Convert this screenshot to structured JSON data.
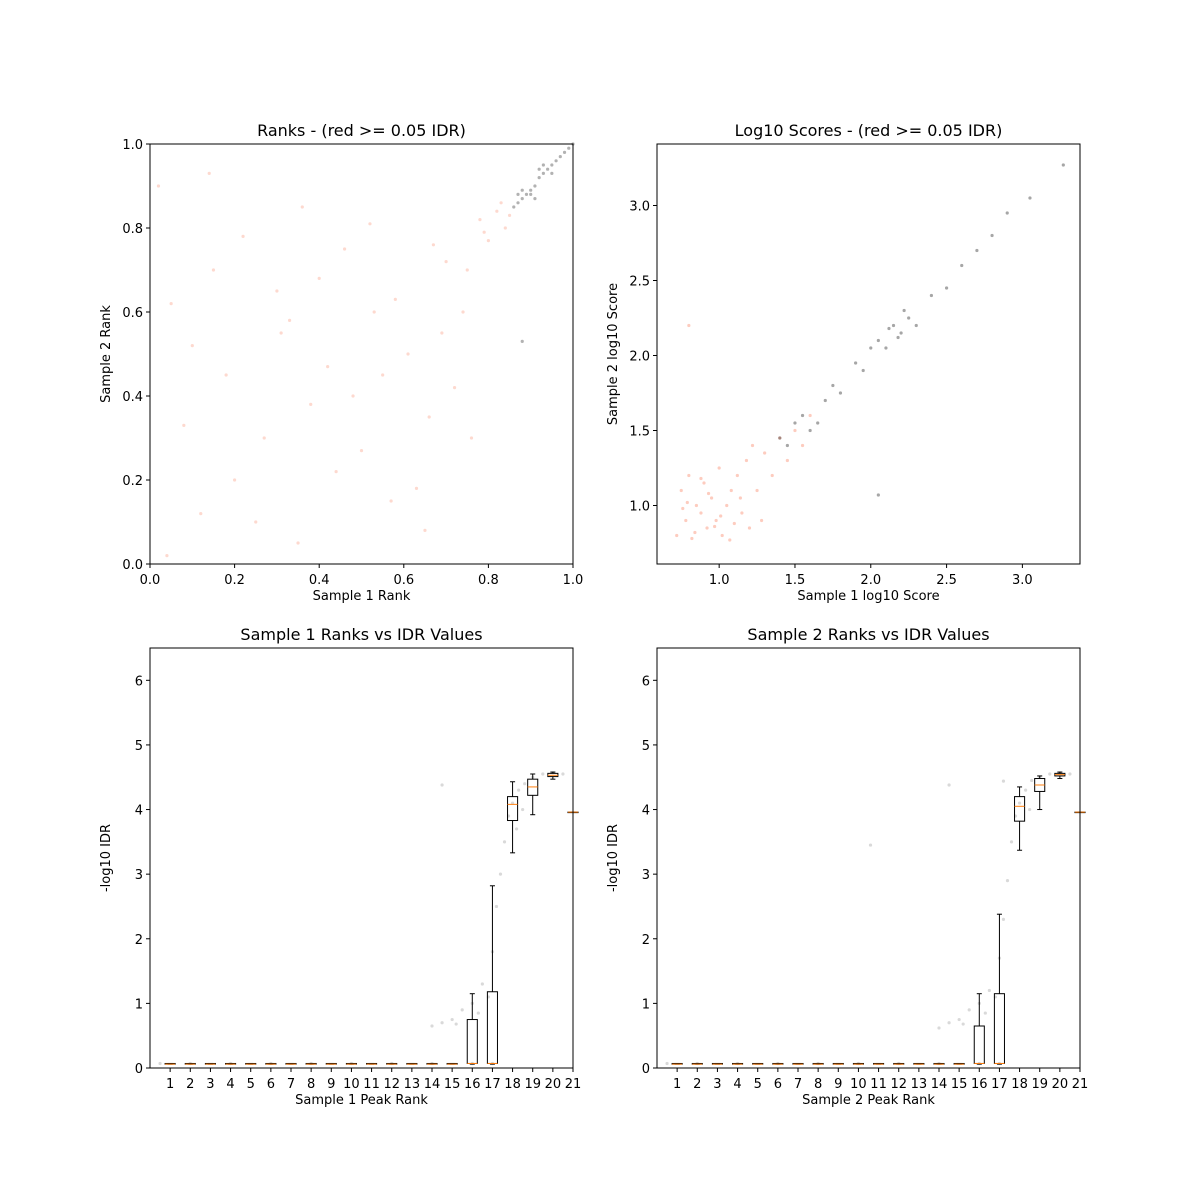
{
  "chart_data": [
    {
      "type": "scatter",
      "title": "Ranks - (red >= 0.05 IDR)",
      "x_label": "Sample 1 Rank",
      "y_label": "Sample 2 Rank",
      "xlim": [
        0,
        1
      ],
      "ylim": [
        0,
        1
      ],
      "xticks": [
        {
          "value": 0,
          "label": "0.0"
        },
        {
          "value": 0.2,
          "label": "0.2"
        },
        {
          "value": 0.4,
          "label": "0.4"
        },
        {
          "value": 0.6,
          "label": "0.6"
        },
        {
          "value": 0.8,
          "label": "0.8"
        },
        {
          "value": 1,
          "label": "1.0"
        }
      ],
      "yticks": [
        {
          "value": 0,
          "label": "0.0"
        },
        {
          "value": 0.2,
          "label": "0.2"
        },
        {
          "value": 0.4,
          "label": "0.4"
        },
        {
          "value": 0.6,
          "label": "0.6"
        },
        {
          "value": 0.8,
          "label": "0.8"
        },
        {
          "value": 1,
          "label": "1.0"
        }
      ],
      "series": [
        {
          "color": "#fa8060",
          "opacity": 0.3,
          "x": [
            0.05,
            0.12,
            0.18,
            0.22,
            0.27,
            0.31,
            0.35,
            0.4,
            0.44,
            0.48,
            0.52,
            0.57,
            0.61,
            0.66,
            0.7,
            0.74,
            0.78,
            0.82,
            0.08,
            0.15,
            0.25,
            0.33,
            0.42,
            0.5,
            0.58,
            0.65,
            0.72,
            0.8,
            0.85,
            0.02,
            0.1,
            0.2,
            0.3,
            0.38,
            0.46,
            0.55,
            0.63,
            0.69,
            0.76,
            0.84,
            0.04,
            0.14,
            0.36,
            0.53,
            0.67,
            0.75,
            0.79,
            0.83
          ],
          "y": [
            0.62,
            0.12,
            0.45,
            0.78,
            0.3,
            0.55,
            0.05,
            0.68,
            0.22,
            0.4,
            0.81,
            0.15,
            0.5,
            0.35,
            0.72,
            0.6,
            0.82,
            0.84,
            0.33,
            0.7,
            0.1,
            0.58,
            0.47,
            0.27,
            0.63,
            0.08,
            0.42,
            0.77,
            0.83,
            0.9,
            0.52,
            0.2,
            0.65,
            0.38,
            0.75,
            0.45,
            0.18,
            0.55,
            0.3,
            0.8,
            0.02,
            0.93,
            0.85,
            0.6,
            0.76,
            0.7,
            0.79,
            0.86
          ]
        },
        {
          "color": "#000000",
          "opacity": 0.3,
          "x": [
            0.86,
            0.87,
            0.88,
            0.89,
            0.9,
            0.91,
            0.92,
            0.93,
            0.94,
            0.95,
            0.96,
            0.97,
            0.98,
            0.99,
            1.0,
            0.9,
            0.92,
            0.88,
            0.95,
            0.87,
            0.88,
            0.93,
            0.91
          ],
          "y": [
            0.85,
            0.86,
            0.87,
            0.88,
            0.89,
            0.9,
            0.92,
            0.93,
            0.94,
            0.95,
            0.96,
            0.97,
            0.98,
            0.99,
            1.0,
            0.88,
            0.94,
            0.89,
            0.93,
            0.88,
            0.53,
            0.95,
            0.87
          ]
        }
      ]
    },
    {
      "type": "scatter",
      "title": "Log10 Scores - (red >= 0.05 IDR)",
      "x_label": "Sample 1 log10 Score",
      "y_label": "Sample 2 log10 Score",
      "xlim": [
        0.59,
        3.38
      ],
      "ylim": [
        0.61,
        3.41
      ],
      "xticks": [
        {
          "value": 1,
          "label": "1.0"
        },
        {
          "value": 1.5,
          "label": "1.5"
        },
        {
          "value": 2,
          "label": "2.0"
        },
        {
          "value": 2.5,
          "label": "2.5"
        },
        {
          "value": 3,
          "label": "3.0"
        }
      ],
      "yticks": [
        {
          "value": 1,
          "label": "1.0"
        },
        {
          "value": 1.5,
          "label": "1.5"
        },
        {
          "value": 2,
          "label": "2.0"
        },
        {
          "value": 2.5,
          "label": "2.5"
        },
        {
          "value": 3,
          "label": "3.0"
        }
      ],
      "series": [
        {
          "color": "#fa8060",
          "opacity": 0.4,
          "x": [
            0.72,
            0.75,
            0.78,
            0.8,
            0.82,
            0.85,
            0.88,
            0.9,
            0.92,
            0.95,
            0.98,
            1.0,
            1.02,
            1.05,
            1.08,
            1.1,
            1.12,
            1.15,
            1.18,
            1.2,
            1.25,
            1.3,
            0.76,
            0.84,
            0.93,
            1.01,
            1.07,
            0.79,
            0.88,
            0.97,
            1.14,
            1.22,
            1.35,
            1.4,
            1.45,
            1.5,
            1.55,
            1.6,
            0.8,
            1.28
          ],
          "y": [
            0.8,
            1.1,
            0.9,
            1.2,
            0.78,
            1.0,
            0.95,
            1.15,
            0.85,
            1.05,
            0.9,
            1.25,
            0.8,
            1.0,
            1.1,
            0.88,
            1.2,
            0.95,
            1.3,
            0.85,
            1.1,
            1.35,
            0.98,
            0.82,
            1.08,
            0.93,
            0.77,
            1.02,
            1.18,
            0.86,
            1.05,
            1.4,
            1.2,
            1.45,
            1.3,
            1.5,
            1.4,
            1.6,
            2.2,
            0.9
          ]
        },
        {
          "color": "#000000",
          "opacity": 0.35,
          "x": [
            1.4,
            1.45,
            1.5,
            1.55,
            1.6,
            1.7,
            1.75,
            1.8,
            1.9,
            1.95,
            2.0,
            2.05,
            2.1,
            2.15,
            2.2,
            2.25,
            2.3,
            2.4,
            2.5,
            2.6,
            2.7,
            2.8,
            2.9,
            3.05,
            3.27,
            2.05,
            2.12,
            2.18,
            2.22,
            1.65
          ],
          "y": [
            1.45,
            1.4,
            1.55,
            1.6,
            1.5,
            1.7,
            1.8,
            1.75,
            1.95,
            1.9,
            2.05,
            2.1,
            2.05,
            2.2,
            2.15,
            2.25,
            2.2,
            2.4,
            2.45,
            2.6,
            2.7,
            2.8,
            2.95,
            3.05,
            3.27,
            1.07,
            2.18,
            2.12,
            2.3,
            1.55
          ]
        }
      ]
    },
    {
      "type": "box",
      "title": "Sample 1 Ranks vs IDR Values",
      "x_label": "Sample 1 Peak Rank",
      "y_label": "-log10 IDR",
      "xlim": [
        0,
        21
      ],
      "ylim": [
        0,
        6.5
      ],
      "xticks": [
        1,
        2,
        3,
        4,
        5,
        6,
        7,
        8,
        9,
        10,
        11,
        12,
        13,
        14,
        15,
        16,
        17,
        18,
        19,
        20,
        21
      ],
      "yticks": [
        0,
        1,
        2,
        3,
        4,
        5,
        6
      ],
      "points": {
        "color": "#000000",
        "opacity": 0.15,
        "x": [
          0.5,
          2,
          4,
          6,
          8,
          10,
          12,
          14,
          16,
          17,
          14,
          14.5,
          15,
          15.5,
          16,
          16.5,
          17,
          17.2,
          17.4,
          17.6,
          17.8,
          18,
          18.3,
          18.6,
          19,
          19.5,
          20,
          20.5,
          15.2,
          16.3,
          16.8,
          14.5,
          18.5,
          18.2
        ],
        "y": [
          0.07,
          0.07,
          0.07,
          0.07,
          0.07,
          0.07,
          0.07,
          0.07,
          0.07,
          0.07,
          0.65,
          0.7,
          0.75,
          0.9,
          1.0,
          1.3,
          1.8,
          2.5,
          3.0,
          3.5,
          3.9,
          4.1,
          4.3,
          4.4,
          4.5,
          4.55,
          4.57,
          4.55,
          0.68,
          0.85,
          1.1,
          4.38,
          4.0,
          3.7
        ]
      },
      "boxes": {
        "x": [
          1,
          2,
          3,
          4,
          5,
          6,
          7,
          8,
          9,
          10,
          11,
          12,
          13,
          14,
          15,
          16,
          17,
          18,
          19,
          20,
          21
        ],
        "low": [
          0.06,
          0.06,
          0.06,
          0.06,
          0.06,
          0.06,
          0.06,
          0.06,
          0.06,
          0.06,
          0.06,
          0.06,
          0.06,
          0.06,
          0.06,
          0.06,
          0.06,
          3.33,
          3.92,
          4.47,
          3.96
        ],
        "q1": [
          0.06,
          0.06,
          0.06,
          0.06,
          0.06,
          0.06,
          0.06,
          0.06,
          0.06,
          0.06,
          0.06,
          0.06,
          0.06,
          0.06,
          0.06,
          0.07,
          0.07,
          3.83,
          4.22,
          4.51,
          3.96
        ],
        "med": [
          0.06,
          0.06,
          0.06,
          0.06,
          0.06,
          0.06,
          0.06,
          0.06,
          0.06,
          0.06,
          0.06,
          0.06,
          0.06,
          0.06,
          0.06,
          0.07,
          0.07,
          4.08,
          4.35,
          4.53,
          3.96
        ],
        "q3": [
          0.07,
          0.07,
          0.07,
          0.07,
          0.07,
          0.07,
          0.07,
          0.07,
          0.07,
          0.07,
          0.07,
          0.07,
          0.07,
          0.07,
          0.07,
          0.75,
          1.18,
          4.2,
          4.47,
          4.56,
          3.96
        ],
        "high": [
          0.07,
          0.07,
          0.07,
          0.07,
          0.07,
          0.07,
          0.07,
          0.07,
          0.07,
          0.07,
          0.07,
          0.07,
          0.07,
          0.07,
          0.07,
          1.15,
          2.82,
          4.43,
          4.55,
          4.58,
          3.96
        ]
      },
      "median_color": "#ff7f0e"
    },
    {
      "type": "box",
      "title": "Sample 2 Ranks vs IDR Values",
      "x_label": "Sample 2 Peak Rank",
      "y_label": "-log10 IDR",
      "xlim": [
        0,
        21
      ],
      "ylim": [
        0,
        6.5
      ],
      "xticks": [
        1,
        2,
        3,
        4,
        5,
        6,
        7,
        8,
        9,
        10,
        11,
        12,
        13,
        14,
        15,
        16,
        17,
        18,
        19,
        20,
        21
      ],
      "yticks": [
        0,
        1,
        2,
        3,
        4,
        5,
        6
      ],
      "points": {
        "color": "#000000",
        "opacity": 0.15,
        "x": [
          0.5,
          2,
          4,
          6,
          8,
          10,
          12,
          14,
          16,
          17,
          14,
          14.5,
          15,
          15.5,
          16,
          16.5,
          17,
          17.2,
          17.4,
          17.6,
          17.8,
          18,
          18.3,
          18.6,
          19,
          19.5,
          20,
          20.5,
          15.2,
          16.3,
          16.8,
          14.5,
          17.2,
          10.6,
          18.5
        ],
        "y": [
          0.07,
          0.07,
          0.07,
          0.07,
          0.07,
          0.07,
          0.07,
          0.07,
          0.07,
          0.07,
          0.62,
          0.7,
          0.75,
          0.9,
          1.0,
          1.2,
          1.7,
          2.3,
          2.9,
          3.5,
          3.9,
          4.1,
          4.3,
          4.45,
          4.5,
          4.55,
          4.57,
          4.55,
          0.68,
          0.85,
          1.1,
          4.38,
          4.44,
          3.45,
          4.0
        ]
      },
      "boxes": {
        "x": [
          1,
          2,
          3,
          4,
          5,
          6,
          7,
          8,
          9,
          10,
          11,
          12,
          13,
          14,
          15,
          16,
          17,
          18,
          19,
          20,
          21
        ],
        "low": [
          0.06,
          0.06,
          0.06,
          0.06,
          0.06,
          0.06,
          0.06,
          0.06,
          0.06,
          0.06,
          0.06,
          0.06,
          0.06,
          0.06,
          0.06,
          0.06,
          0.06,
          3.37,
          4.0,
          4.48,
          3.96
        ],
        "q1": [
          0.06,
          0.06,
          0.06,
          0.06,
          0.06,
          0.06,
          0.06,
          0.06,
          0.06,
          0.06,
          0.06,
          0.06,
          0.06,
          0.06,
          0.06,
          0.07,
          0.07,
          3.82,
          4.28,
          4.52,
          3.96
        ],
        "med": [
          0.06,
          0.06,
          0.06,
          0.06,
          0.06,
          0.06,
          0.06,
          0.06,
          0.06,
          0.06,
          0.06,
          0.06,
          0.06,
          0.06,
          0.06,
          0.07,
          0.07,
          4.05,
          4.38,
          4.54,
          3.96
        ],
        "q3": [
          0.07,
          0.07,
          0.07,
          0.07,
          0.07,
          0.07,
          0.07,
          0.07,
          0.07,
          0.07,
          0.07,
          0.07,
          0.07,
          0.07,
          0.07,
          0.65,
          1.15,
          4.2,
          4.48,
          4.56,
          3.96
        ],
        "high": [
          0.07,
          0.07,
          0.07,
          0.07,
          0.07,
          0.07,
          0.07,
          0.07,
          0.07,
          0.07,
          0.07,
          0.07,
          0.07,
          0.07,
          0.07,
          1.15,
          2.38,
          4.35,
          4.52,
          4.58,
          3.96
        ]
      },
      "median_color": "#ff7f0e"
    }
  ]
}
